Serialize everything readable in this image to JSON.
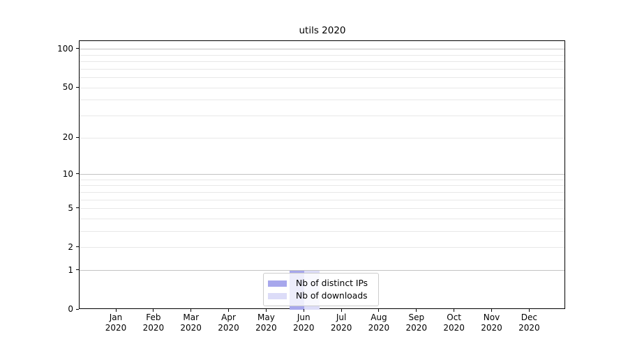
{
  "colors": {
    "background": "#ffffff",
    "frame": "#000000",
    "grid_major": "#c2c2c2",
    "grid_minor": "#e8e8e8",
    "text": "#000000",
    "legend_border": "#cccccc"
  },
  "chart_data": {
    "type": "bar",
    "title": "utils 2020",
    "xlabel": "",
    "ylabel": "",
    "y_scale": "log1p",
    "ylim": [
      0,
      116
    ],
    "y_ticks": [
      100,
      50,
      20,
      10,
      5,
      2,
      1,
      0
    ],
    "major_gridlines": [
      1,
      10,
      100
    ],
    "minor_gridlines": [
      2,
      3,
      4,
      5,
      6,
      7,
      8,
      9,
      20,
      30,
      40,
      50,
      60,
      70,
      80,
      90
    ],
    "grid": true,
    "categories": [
      {
        "month": "Jan",
        "year": "2020"
      },
      {
        "month": "Feb",
        "year": "2020"
      },
      {
        "month": "Mar",
        "year": "2020"
      },
      {
        "month": "Apr",
        "year": "2020"
      },
      {
        "month": "May",
        "year": "2020"
      },
      {
        "month": "Jun",
        "year": "2020"
      },
      {
        "month": "Jul",
        "year": "2020"
      },
      {
        "month": "Aug",
        "year": "2020"
      },
      {
        "month": "Sep",
        "year": "2020"
      },
      {
        "month": "Oct",
        "year": "2020"
      },
      {
        "month": "Nov",
        "year": "2020"
      },
      {
        "month": "Dec",
        "year": "2020"
      }
    ],
    "series": [
      {
        "name": "Nb of distinct IPs",
        "color": "#a7a7ec",
        "values": [
          0,
          0,
          0,
          0,
          0,
          1,
          0,
          0,
          0,
          0,
          0,
          0
        ]
      },
      {
        "name": "Nb of downloads",
        "color": "#dcdcf8",
        "values": [
          0,
          0,
          0,
          0,
          0,
          1,
          0,
          0,
          0,
          0,
          0,
          0
        ]
      }
    ],
    "legend": {
      "position": "bottom-center",
      "items": [
        "Nb of distinct IPs",
        "Nb of downloads"
      ]
    }
  }
}
